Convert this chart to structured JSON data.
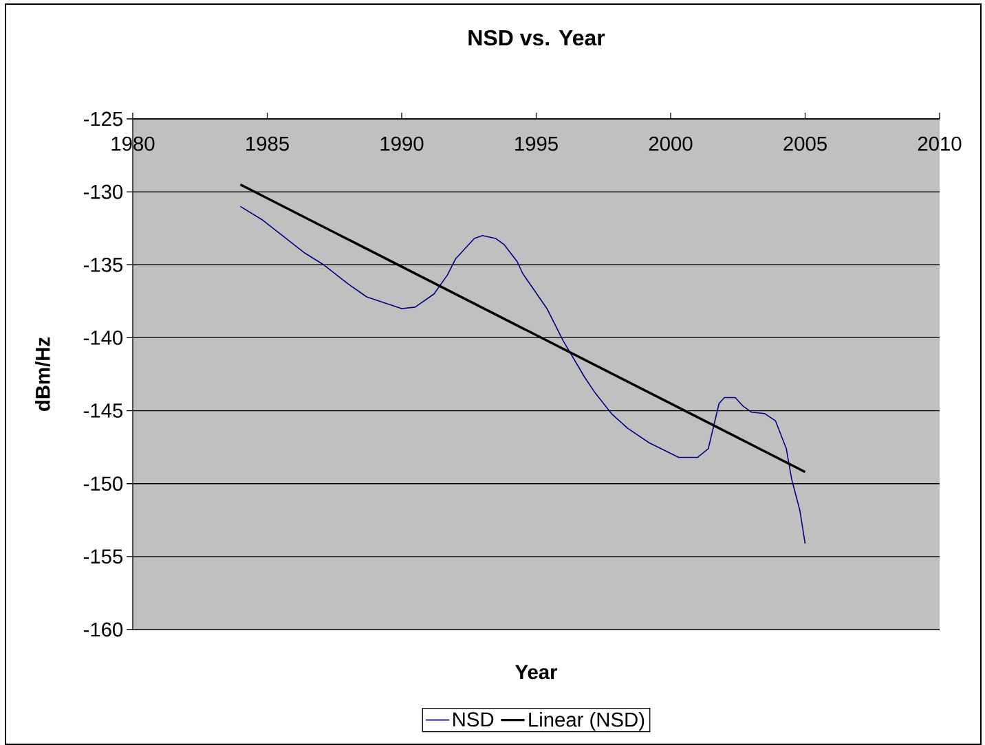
{
  "chart_data": {
    "type": "line",
    "title": "NSD vs. Year",
    "xlabel": "Year",
    "ylabel": "dBm/Hz",
    "xlim": [
      1980,
      2010
    ],
    "xticks": [
      1980,
      1985,
      1990,
      1995,
      2000,
      2005,
      2010
    ],
    "ylim": [
      -160,
      -125
    ],
    "yticks": [
      -160,
      -155,
      -150,
      -145,
      -140,
      -135,
      -130,
      -125
    ],
    "grid": "y",
    "legend": "bottom",
    "marker": "none",
    "series": [
      {
        "name": "NSD",
        "color": "#000080",
        "x": [
          1984.0,
          1984.8,
          1986.4,
          1987.1,
          1988.0,
          1988.7,
          1989.5,
          1990.0,
          1990.5,
          1991.2,
          1991.7,
          1992.0,
          1992.4,
          1992.7,
          1993.0,
          1993.5,
          1993.8,
          1994.3,
          1994.5,
          1995.4,
          1996.0,
          1996.8,
          1997.2,
          1997.8,
          1998.4,
          1999.2,
          2000.3,
          2001.0,
          2001.4,
          2001.8,
          2002.0,
          2002.4,
          2002.7,
          2003.0,
          2003.5,
          2003.9,
          2004.3,
          2004.5,
          2004.8,
          2005.0
        ],
        "values": [
          -131.0,
          -131.9,
          -134.2,
          -135.0,
          -136.3,
          -137.2,
          -137.7,
          -138.0,
          -137.9,
          -137.0,
          -135.7,
          -134.6,
          -133.8,
          -133.2,
          -133.0,
          -133.2,
          -133.6,
          -134.8,
          -135.6,
          -138.0,
          -140.2,
          -142.7,
          -143.8,
          -145.2,
          -146.2,
          -147.2,
          -148.2,
          -148.2,
          -147.6,
          -144.5,
          -144.1,
          -144.1,
          -144.7,
          -145.1,
          -145.2,
          -145.7,
          -147.6,
          -149.7,
          -151.8,
          -154.1
        ]
      },
      {
        "name": "Linear (NSD)",
        "color": "#000000",
        "x": [
          1984,
          2005
        ],
        "values": [
          -129.5,
          -149.2
        ]
      }
    ]
  }
}
